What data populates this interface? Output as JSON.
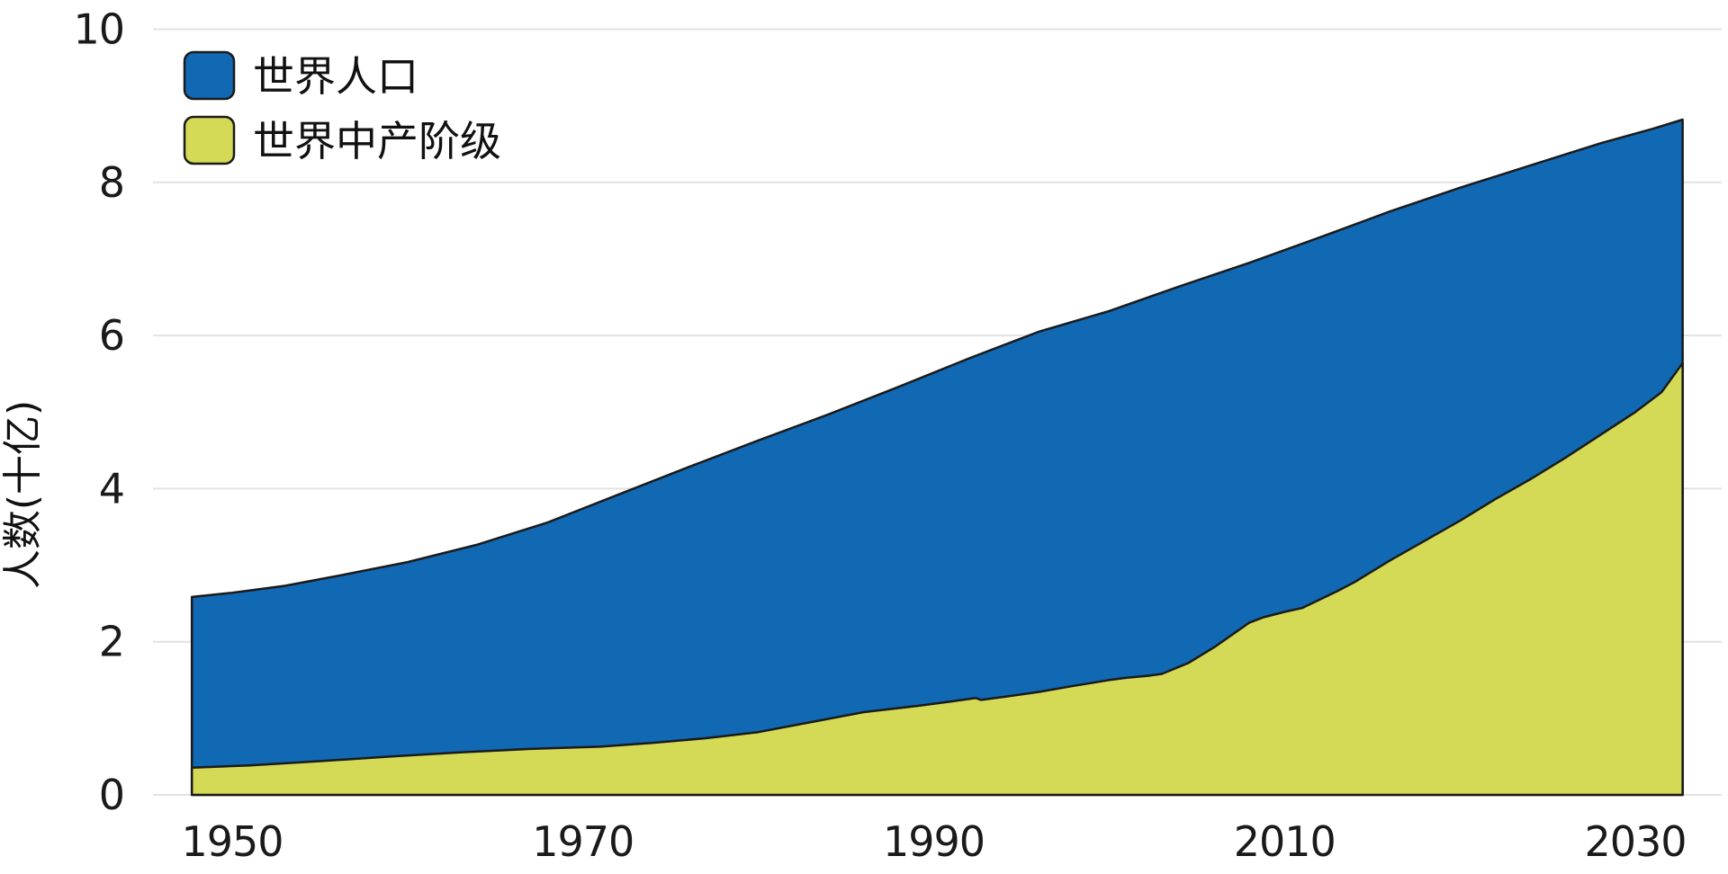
{
  "chart_data": {
    "type": "area",
    "title": "",
    "xlabel": "",
    "ylabel": "人数(十亿)",
    "ylim": [
      0,
      10
    ],
    "yticks": [
      0,
      2,
      4,
      6,
      8,
      10
    ],
    "xticks": [
      1950,
      1970,
      1990,
      2010,
      2030
    ],
    "x_range": [
      1947.7,
      2032.7
    ],
    "grid": "horizontal-only",
    "legend_position": "top-left",
    "background": "#ffffff",
    "series": [
      {
        "name": "世界人口",
        "color": "#1168b3",
        "outline": "#1a1a1a",
        "points": [
          [
            1947.7,
            2.585
          ],
          [
            1950,
            2.64
          ],
          [
            1953,
            2.73
          ],
          [
            1956,
            2.86
          ],
          [
            1960,
            3.04
          ],
          [
            1964,
            3.27
          ],
          [
            1968,
            3.56
          ],
          [
            1972,
            3.92
          ],
          [
            1976,
            4.28
          ],
          [
            1980,
            4.63
          ],
          [
            1984,
            4.97
          ],
          [
            1988,
            5.33
          ],
          [
            1992,
            5.7
          ],
          [
            1996,
            6.05
          ],
          [
            2000,
            6.32
          ],
          [
            2004,
            6.64
          ],
          [
            2008,
            6.95
          ],
          [
            2012,
            7.28
          ],
          [
            2016,
            7.62
          ],
          [
            2020,
            7.93
          ],
          [
            2024,
            8.22
          ],
          [
            2028,
            8.51
          ],
          [
            2031,
            8.7
          ],
          [
            2032.7,
            8.82
          ]
        ]
      },
      {
        "name": "世界中产阶级",
        "color": "#d4da55",
        "outline": "#1a1a1a",
        "points": [
          [
            1947.7,
            0.355
          ],
          [
            1951,
            0.385
          ],
          [
            1955,
            0.44
          ],
          [
            1959,
            0.5
          ],
          [
            1963,
            0.555
          ],
          [
            1967,
            0.6
          ],
          [
            1971,
            0.63
          ],
          [
            1974,
            0.68
          ],
          [
            1977,
            0.74
          ],
          [
            1980,
            0.82
          ],
          [
            1983,
            0.95
          ],
          [
            1986,
            1.08
          ],
          [
            1989,
            1.16
          ],
          [
            1991,
            1.22
          ],
          [
            1992.4,
            1.265
          ],
          [
            1992.7,
            1.24
          ],
          [
            1994,
            1.28
          ],
          [
            1996,
            1.345
          ],
          [
            1998,
            1.425
          ],
          [
            2000,
            1.5
          ],
          [
            2001,
            1.53
          ],
          [
            2002.2,
            1.555
          ],
          [
            2003,
            1.58
          ],
          [
            2004.5,
            1.72
          ],
          [
            2006,
            1.93
          ],
          [
            2008,
            2.25
          ],
          [
            2008.8,
            2.32
          ],
          [
            2010,
            2.39
          ],
          [
            2011,
            2.44
          ],
          [
            2013,
            2.66
          ],
          [
            2014,
            2.78
          ],
          [
            2016,
            3.06
          ],
          [
            2018,
            3.32
          ],
          [
            2020,
            3.58
          ],
          [
            2022,
            3.86
          ],
          [
            2024,
            4.12
          ],
          [
            2026,
            4.4
          ],
          [
            2028,
            4.7
          ],
          [
            2030,
            5.0
          ],
          [
            2031.5,
            5.26
          ],
          [
            2032.7,
            5.64
          ]
        ]
      }
    ]
  },
  "legend": {
    "items": [
      {
        "label": "世界人口",
        "color": "#1168b3"
      },
      {
        "label": "世界中产阶级",
        "color": "#d4da55"
      }
    ]
  },
  "axes": {
    "y_title": "人数(十亿)"
  },
  "colors": {
    "grid_line": "#e2e2e2",
    "outline": "#1a1a1a",
    "text": "#1a1a1a",
    "background": "#ffffff"
  }
}
